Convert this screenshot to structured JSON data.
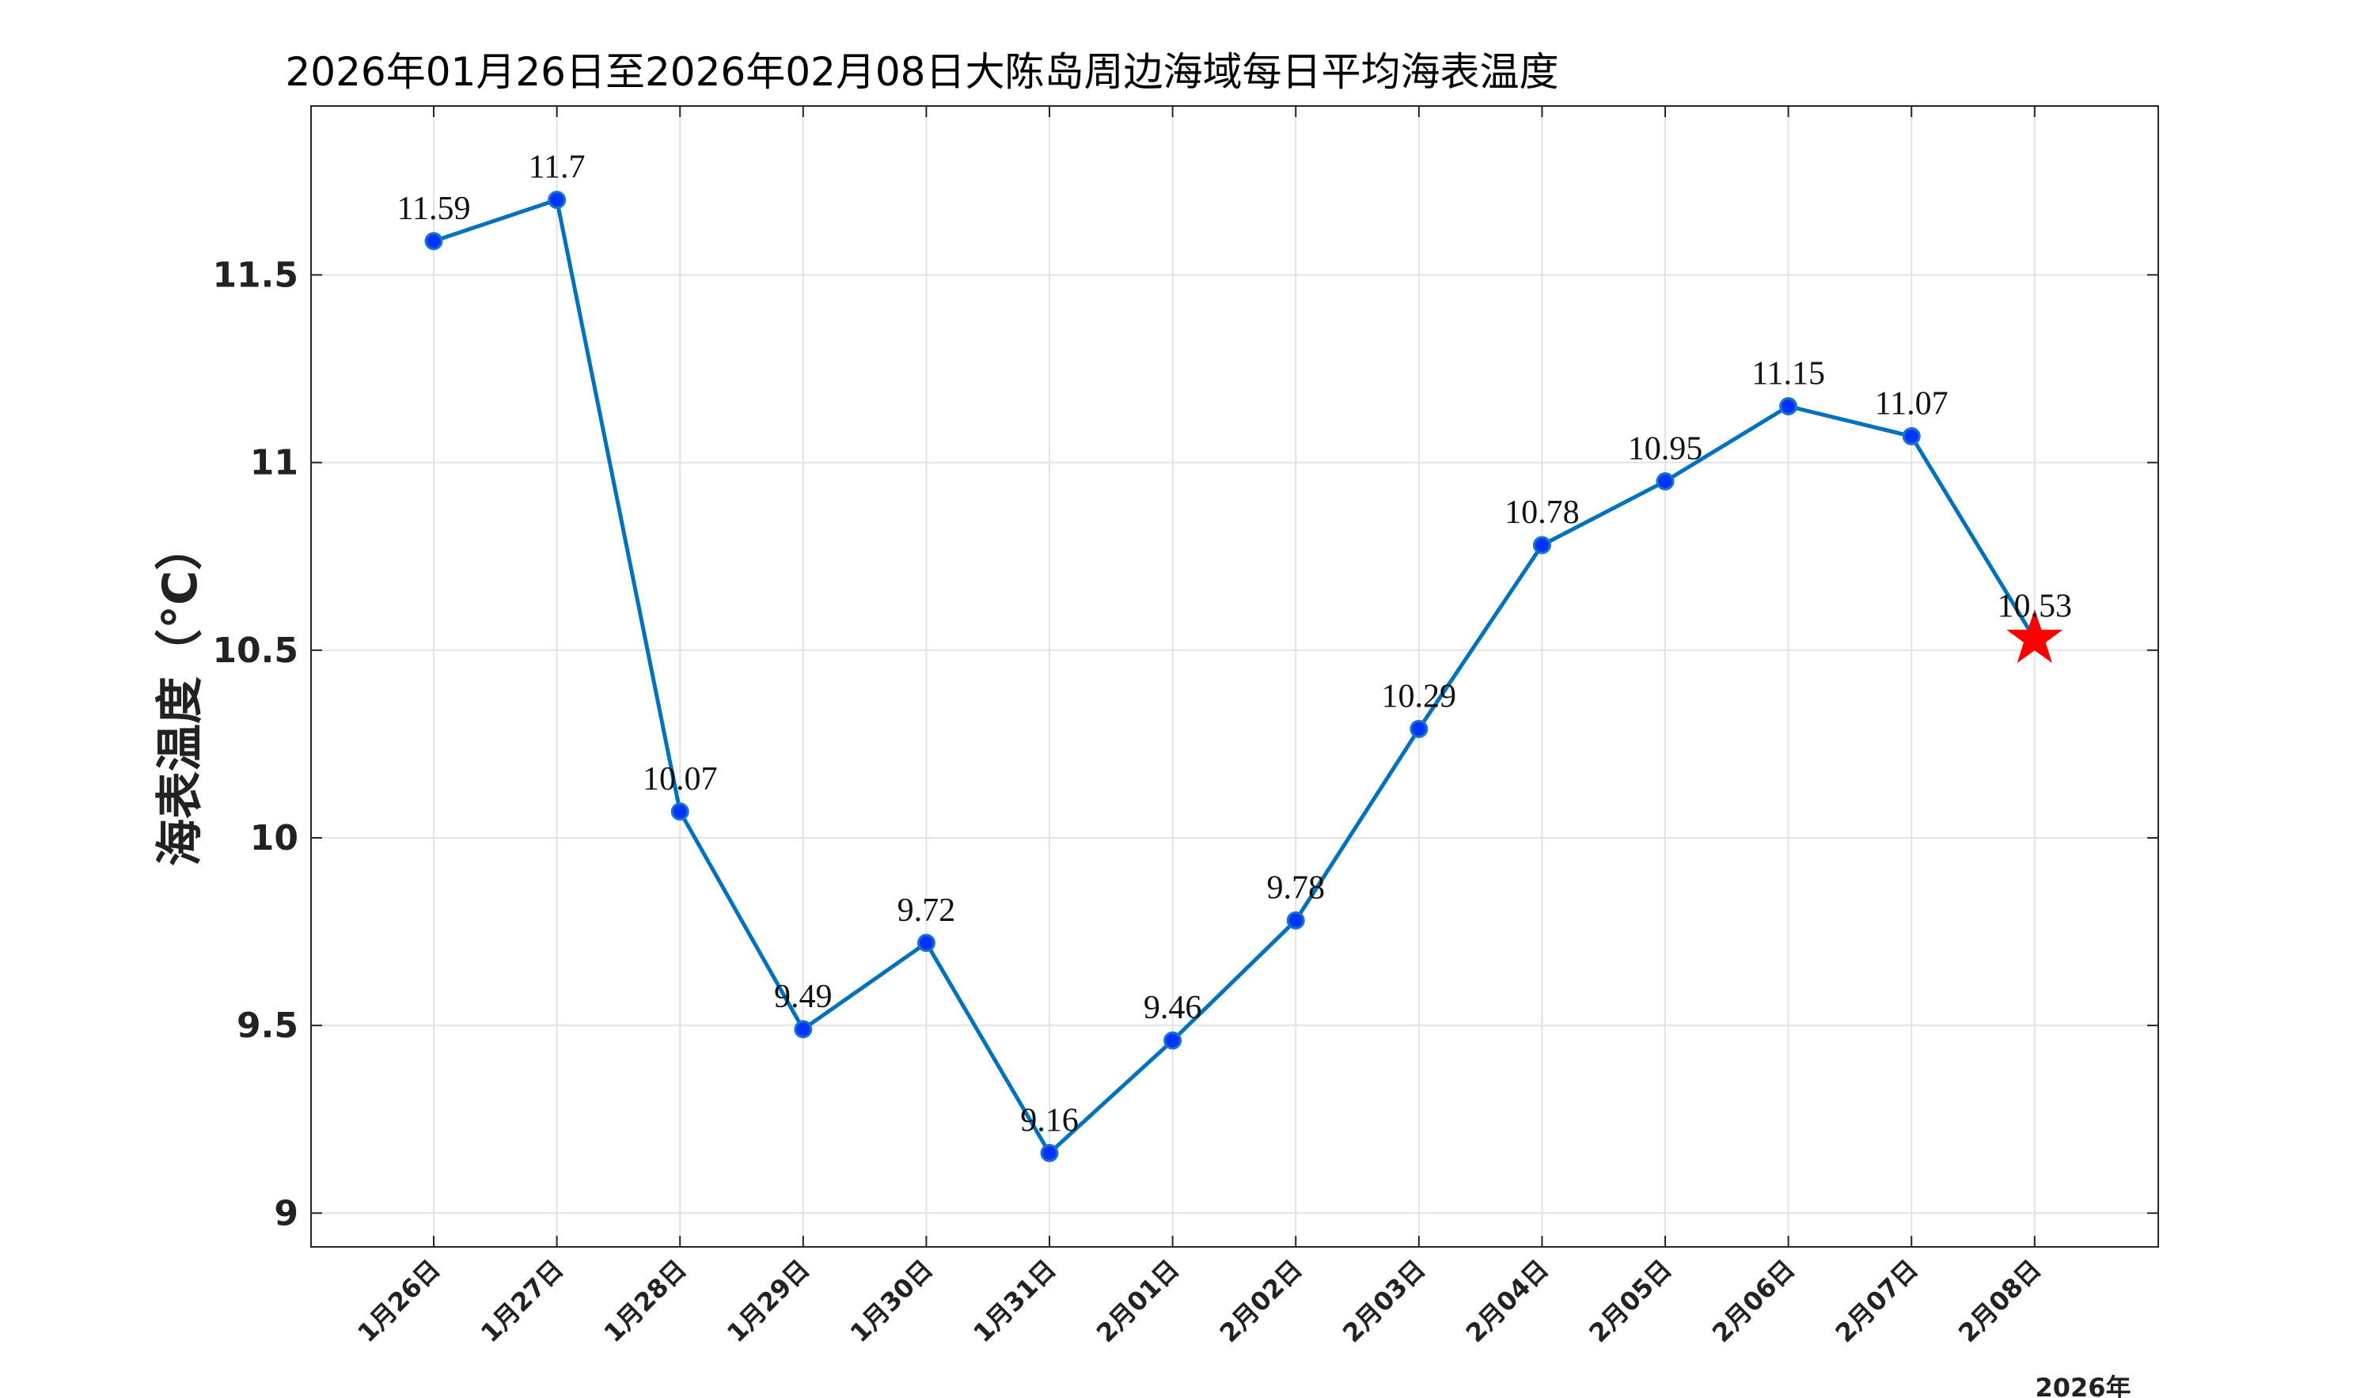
{
  "chart_data": {
    "type": "line",
    "title": "2026年01月26日至2026年02月08日大陈岛周边海域每日平均海表温度",
    "ylabel": "海表温度（°C）",
    "year_label": "2026年",
    "categories": [
      "1月26日",
      "1月27日",
      "1月28日",
      "1月29日",
      "1月30日",
      "1月31日",
      "2月01日",
      "2月02日",
      "2月03日",
      "2月04日",
      "2月05日",
      "2月06日",
      "2月07日",
      "2月08日"
    ],
    "series": [
      {
        "values": [
          11.59,
          11.7,
          10.07,
          9.49,
          9.72,
          9.16,
          9.46,
          9.78,
          10.29,
          10.78,
          10.95,
          11.15,
          11.07,
          10.53
        ],
        "labels": [
          "11.59",
          "11.7",
          "10.07",
          "9.49",
          "9.72",
          "9.16",
          "9.46",
          "9.78",
          "10.29",
          "10.78",
          "10.95",
          "11.15",
          "11.07",
          "10.53"
        ]
      }
    ],
    "ylim": [
      8.91,
      11.95
    ],
    "yticks": [
      9,
      9.5,
      10,
      10.5,
      11,
      11.5
    ],
    "ytick_labels": [
      "9",
      "9.5",
      "10",
      "10.5",
      "11",
      "11.5"
    ],
    "grid": true,
    "highlight_last_point": "star",
    "colors": {
      "line": "#0072BD",
      "marker_fill": "#0033ff",
      "marker_edge": "#1a75c8",
      "star": "#ff0000"
    }
  }
}
